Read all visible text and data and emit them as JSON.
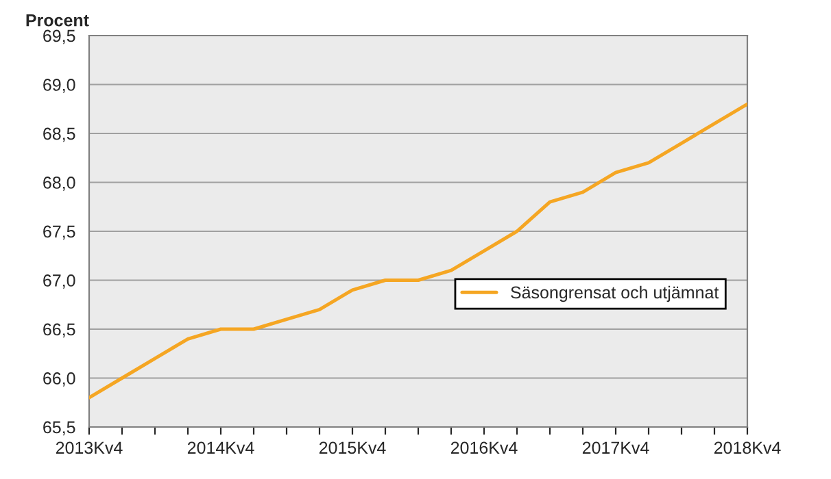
{
  "chart_data": {
    "type": "line",
    "ylabel": "Procent",
    "categories": [
      "2013Kv4",
      null,
      null,
      null,
      "2014Kv4",
      null,
      null,
      null,
      "2015Kv4",
      null,
      null,
      null,
      "2016Kv4",
      null,
      null,
      null,
      "2017Kv4",
      null,
      null,
      null,
      "2018Kv4"
    ],
    "series": [
      {
        "name": "Säsongrensat och utjämnat",
        "color": "#f5a623",
        "values": [
          65.8,
          66.0,
          66.2,
          66.4,
          66.5,
          66.5,
          66.6,
          66.7,
          66.9,
          67.0,
          67.0,
          67.1,
          67.3,
          67.5,
          67.8,
          67.9,
          68.1,
          68.2,
          68.4,
          68.6,
          68.8
        ]
      }
    ],
    "ylim": [
      65.5,
      69.5
    ],
    "yticks": [
      {
        "value": 65.5,
        "label": "65,5"
      },
      {
        "value": 66.0,
        "label": "66,0"
      },
      {
        "value": 66.5,
        "label": "66,5"
      },
      {
        "value": 67.0,
        "label": "67,0"
      },
      {
        "value": 67.5,
        "label": "67,5"
      },
      {
        "value": 68.0,
        "label": "68,0"
      },
      {
        "value": 68.5,
        "label": "68,5"
      },
      {
        "value": 69.0,
        "label": "69,0"
      },
      {
        "value": 69.5,
        "label": "69,5"
      }
    ],
    "grid": "y",
    "legend": "right",
    "marker": "none",
    "line_style": "solid"
  }
}
